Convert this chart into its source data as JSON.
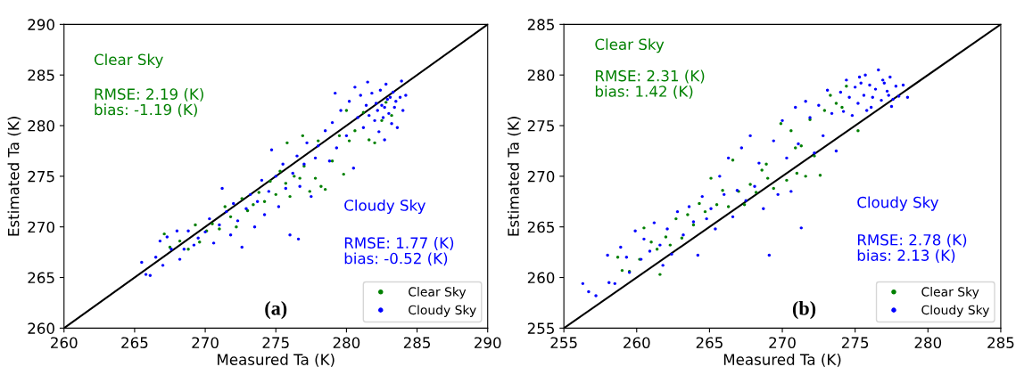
{
  "chart_data": [
    {
      "type": "scatter",
      "xlabel": "Measured Ta (K)",
      "ylabel": "Estimated Ta (K)",
      "xlim": [
        260,
        290
      ],
      "ylim": [
        260,
        290
      ],
      "xticks": [
        260,
        265,
        270,
        275,
        280,
        285,
        290
      ],
      "yticks": [
        260,
        265,
        270,
        275,
        280,
        285,
        290
      ],
      "grid": false,
      "legend": "lower right",
      "annotations": [
        "Clear Sky",
        "RMSE: 2.19 (K)\nbias: -1.19 (K)",
        "Cloudy Sky",
        "RMSE: 1.77 (K)\nbias: -0.52 (K)",
        "(a)"
      ],
      "series": [
        {
          "name": "Clear Sky",
          "color": "#008000",
          "marker": "circle",
          "x": [
            267.1,
            267.5,
            268.2,
            268.8,
            269.3,
            269.6,
            270.1,
            270.5,
            271.0,
            271.4,
            271.8,
            272.2,
            272.6,
            273.0,
            273.4,
            273.8,
            274.2,
            274.6,
            275.0,
            275.3,
            275.7,
            276.0,
            276.3,
            276.7,
            277.0,
            277.4,
            277.8,
            278.2,
            278.5,
            279.0,
            279.5,
            279.8,
            280.2,
            280.6,
            281.2,
            281.6,
            282.0,
            282.8,
            283.2,
            275.8,
            276.9,
            278.0,
            282.5,
            280.0
          ],
          "values": [
            269.3,
            268.0,
            268.6,
            267.8,
            270.2,
            268.5,
            269.6,
            270.3,
            269.8,
            272.0,
            271.0,
            270.0,
            272.8,
            271.6,
            272.2,
            273.4,
            272.5,
            274.5,
            273.2,
            275.5,
            274.3,
            273.0,
            275.0,
            274.8,
            276.0,
            273.5,
            274.8,
            274.0,
            273.7,
            276.5,
            279.0,
            275.2,
            278.5,
            279.5,
            281.3,
            278.6,
            278.3,
            282.3,
            281.0,
            278.3,
            279.0,
            278.5,
            280.5,
            281.5
          ]
        },
        {
          "name": "Cloudy Sky",
          "color": "#0000ff",
          "marker": "circle",
          "x": [
            265.5,
            265.8,
            266.1,
            266.5,
            266.8,
            267.0,
            267.3,
            267.6,
            268.0,
            268.2,
            268.5,
            268.8,
            269.2,
            269.5,
            270.0,
            270.3,
            270.6,
            271.0,
            271.2,
            271.5,
            271.8,
            272.0,
            272.3,
            272.6,
            272.9,
            273.2,
            273.5,
            273.7,
            274.0,
            274.2,
            274.5,
            274.7,
            275.0,
            275.2,
            275.5,
            275.7,
            276.0,
            276.2,
            276.5,
            276.7,
            277.0,
            277.2,
            277.5,
            277.8,
            278.0,
            276.6,
            278.5,
            278.8,
            279.0,
            279.3,
            279.6,
            280.0,
            280.2,
            280.5,
            280.8,
            281.0,
            281.2,
            281.4,
            281.6,
            281.8,
            282.0,
            282.1,
            282.2,
            282.3,
            282.4,
            282.5,
            282.6,
            282.7,
            282.8,
            282.9,
            283.0,
            283.1,
            283.2,
            283.3,
            283.4,
            283.5,
            283.6,
            283.8,
            284.0,
            284.2,
            281.5,
            280.6,
            279.2,
            282.7,
            283.9
          ],
          "values": [
            266.5,
            265.3,
            265.2,
            267.0,
            268.6,
            266.2,
            269.0,
            267.8,
            269.6,
            266.8,
            267.8,
            269.6,
            268.2,
            268.9,
            269.5,
            270.8,
            268.4,
            270.2,
            273.8,
            271.5,
            269.2,
            272.3,
            270.6,
            268.0,
            271.8,
            273.2,
            270.0,
            272.5,
            274.6,
            271.2,
            273.5,
            277.6,
            275.0,
            272.0,
            276.2,
            273.8,
            269.2,
            275.3,
            277.0,
            274.0,
            276.2,
            278.3,
            273.0,
            276.8,
            278.0,
            268.8,
            279.5,
            276.5,
            280.3,
            277.8,
            281.5,
            279.0,
            282.4,
            275.8,
            280.8,
            283.0,
            279.8,
            282.0,
            281.0,
            283.2,
            280.5,
            282.2,
            281.5,
            279.4,
            283.5,
            282.0,
            280.8,
            281.8,
            284.1,
            282.6,
            281.2,
            282.8,
            280.2,
            283.3,
            281.8,
            282.4,
            279.8,
            282.8,
            281.5,
            283.0,
            284.3,
            283.8,
            283.2,
            278.6,
            284.4
          ]
        },
        {
          "type": "line",
          "color": "#000000",
          "x": [
            260,
            290
          ],
          "values": [
            260,
            290
          ]
        }
      ]
    },
    {
      "type": "scatter",
      "xlabel": "Measured Ta (K)",
      "ylabel": "Estimated Ta (K)",
      "xlim": [
        255,
        285
      ],
      "ylim": [
        255,
        285
      ],
      "xticks": [
        255,
        260,
        265,
        270,
        275,
        280,
        285
      ],
      "yticks": [
        255,
        260,
        265,
        270,
        275,
        280,
        285
      ],
      "grid": false,
      "legend": "lower right",
      "annotations": [
        "Clear Sky",
        "RMSE: 2.31 (K)\nbias: 1.42 (K)",
        "Cloudy Sky",
        "RMSE: 2.78 (K)\nbias: 2.13 (K)",
        "(b)"
      ],
      "series": [
        {
          "name": "Clear Sky",
          "color": "#008000",
          "marker": "circle",
          "x": [
            258.7,
            259.0,
            259.5,
            260.2,
            260.5,
            261.0,
            261.4,
            261.6,
            262.0,
            262.3,
            262.7,
            263.1,
            263.5,
            263.9,
            264.3,
            264.7,
            265.1,
            265.5,
            265.9,
            266.3,
            266.6,
            267.0,
            267.4,
            267.8,
            268.2,
            268.6,
            269.0,
            269.4,
            269.9,
            270.3,
            270.6,
            271.0,
            271.3,
            271.6,
            271.9,
            272.2,
            272.6,
            272.9,
            273.3,
            273.7,
            274.1,
            274.4,
            275.2,
            270.9,
            268.9
          ],
          "values": [
            262.0,
            260.7,
            260.6,
            261.8,
            264.9,
            263.5,
            262.8,
            260.3,
            264.0,
            263.2,
            265.8,
            263.9,
            266.2,
            265.2,
            267.3,
            266.5,
            269.8,
            267.2,
            268.6,
            267.0,
            271.6,
            268.5,
            267.2,
            269.2,
            268.4,
            270.6,
            269.8,
            268.8,
            275.2,
            269.6,
            274.5,
            270.3,
            273.0,
            270.0,
            275.6,
            272.0,
            270.1,
            276.5,
            278.0,
            277.2,
            276.8,
            278.9,
            274.5,
            272.8,
            271.2
          ]
        },
        {
          "name": "Cloudy Sky",
          "color": "#0000ff",
          "marker": "circle",
          "x": [
            256.3,
            256.7,
            257.2,
            258.0,
            258.1,
            258.5,
            258.9,
            259.3,
            259.5,
            259.9,
            260.3,
            260.5,
            260.9,
            261.2,
            261.6,
            261.8,
            262.1,
            262.4,
            262.8,
            263.2,
            263.6,
            263.9,
            264.2,
            264.5,
            264.8,
            265.1,
            265.4,
            265.7,
            266.0,
            266.3,
            266.6,
            266.9,
            267.2,
            267.5,
            267.8,
            268.1,
            268.4,
            268.7,
            269.1,
            269.4,
            269.7,
            270.0,
            270.3,
            270.6,
            270.9,
            271.1,
            271.3,
            271.6,
            271.9,
            272.2,
            272.5,
            272.8,
            273.1,
            273.4,
            273.7,
            274.0,
            274.2,
            274.4,
            274.6,
            274.8,
            275.0,
            275.2,
            275.4,
            275.6,
            275.8,
            276.0,
            276.2,
            276.4,
            276.6,
            276.8,
            277.0,
            277.2,
            277.4,
            277.6,
            277.8,
            278.0,
            278.3,
            278.6,
            276.1,
            275.3,
            277.3,
            276.9,
            275.7,
            277.5
          ],
          "values": [
            259.4,
            258.6,
            258.2,
            262.2,
            259.5,
            259.4,
            263.0,
            262.0,
            260.5,
            264.6,
            261.8,
            263.8,
            262.6,
            265.4,
            263.2,
            261.2,
            264.8,
            262.3,
            266.5,
            264.2,
            267.0,
            265.5,
            262.2,
            268.0,
            265.8,
            266.8,
            264.8,
            270.0,
            268.2,
            271.8,
            266.0,
            268.6,
            272.8,
            267.6,
            274.0,
            269.0,
            271.3,
            266.8,
            262.2,
            273.5,
            268.2,
            275.5,
            271.8,
            268.5,
            276.8,
            273.2,
            264.9,
            277.4,
            275.8,
            272.3,
            277.0,
            274.0,
            278.5,
            276.2,
            272.5,
            278.3,
            276.4,
            279.5,
            277.8,
            276.0,
            278.8,
            277.2,
            279.2,
            278.0,
            276.5,
            279.0,
            277.8,
            278.6,
            280.5,
            277.5,
            279.2,
            278.4,
            279.8,
            277.6,
            278.9,
            277.9,
            279.0,
            277.8,
            276.8,
            279.8,
            278.0,
            279.5,
            280.0,
            276.9
          ]
        },
        {
          "type": "line",
          "color": "#000000",
          "x": [
            255,
            285
          ],
          "values": [
            255,
            285
          ]
        }
      ]
    }
  ]
}
